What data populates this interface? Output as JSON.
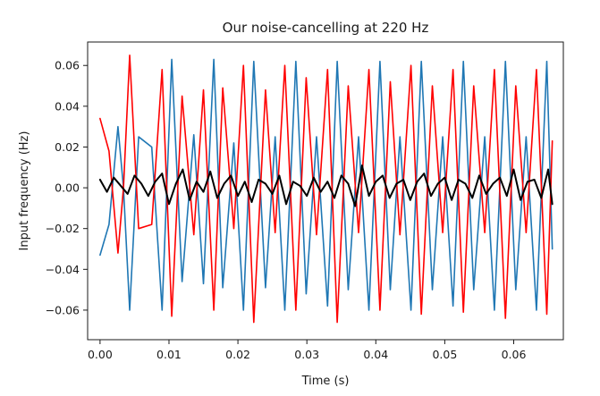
{
  "chart_data": {
    "type": "line",
    "title": "Our noise-cancelling at 220 Hz",
    "xlabel": "Time (s)",
    "ylabel": "Input frequency (Hz)",
    "xlim": [
      -0.0018,
      0.0672
    ],
    "ylim": [
      -0.0745,
      0.0715
    ],
    "x_ticks": [
      0.0,
      0.01,
      0.02,
      0.03,
      0.04,
      0.05,
      0.06
    ],
    "x_tick_labels": [
      "0.00",
      "0.01",
      "0.02",
      "0.03",
      "0.04",
      "0.05",
      "0.06"
    ],
    "y_ticks": [
      0.06,
      0.04,
      0.02,
      0.0,
      -0.02,
      -0.04,
      -0.06
    ],
    "y_tick_labels": [
      "0.06",
      "0.04",
      "0.02",
      "0.00",
      "−0.02",
      "−0.04",
      "−0.06"
    ],
    "grid": false,
    "legend": "none",
    "series": [
      {
        "color": "#1f77b4",
        "x": [
          0.0,
          0.0013,
          0.0026,
          0.0034,
          0.0043,
          0.0056,
          0.0075,
          0.009,
          0.0104,
          0.0119,
          0.0136,
          0.015,
          0.0165,
          0.0178,
          0.0194,
          0.0208,
          0.0223,
          0.024,
          0.0254,
          0.0268,
          0.0284,
          0.0299,
          0.0314,
          0.033,
          0.0344,
          0.036,
          0.0375,
          0.039,
          0.0406,
          0.0421,
          0.0435,
          0.0451,
          0.0466,
          0.0482,
          0.0497,
          0.0512,
          0.0527,
          0.0542,
          0.0558,
          0.0572,
          0.0588,
          0.0603,
          0.0618,
          0.0633,
          0.0648,
          0.0656
        ],
        "y": [
          -0.033,
          -0.018,
          0.03,
          0.0,
          -0.06,
          0.025,
          0.02,
          -0.06,
          0.063,
          -0.046,
          0.026,
          -0.047,
          0.063,
          -0.049,
          0.022,
          -0.06,
          0.062,
          -0.049,
          0.025,
          -0.06,
          0.062,
          -0.052,
          0.025,
          -0.058,
          0.062,
          -0.05,
          0.025,
          -0.06,
          0.062,
          -0.05,
          0.025,
          -0.06,
          0.062,
          -0.05,
          0.025,
          -0.058,
          0.062,
          -0.05,
          0.025,
          -0.06,
          0.062,
          -0.05,
          0.025,
          -0.06,
          0.062,
          -0.03
        ]
      },
      {
        "color": "#ff0000",
        "x": [
          0.0,
          0.0013,
          0.0026,
          0.0034,
          0.0043,
          0.0056,
          0.0075,
          0.009,
          0.0104,
          0.0119,
          0.0136,
          0.015,
          0.0165,
          0.0178,
          0.0194,
          0.0208,
          0.0223,
          0.024,
          0.0254,
          0.0268,
          0.0284,
          0.0299,
          0.0314,
          0.033,
          0.0344,
          0.036,
          0.0375,
          0.039,
          0.0406,
          0.0421,
          0.0435,
          0.0451,
          0.0466,
          0.0482,
          0.0497,
          0.0512,
          0.0527,
          0.0542,
          0.0558,
          0.0572,
          0.0588,
          0.0603,
          0.0618,
          0.0633,
          0.0648,
          0.0656
        ],
        "y": [
          0.034,
          0.018,
          -0.032,
          0.0,
          0.065,
          -0.02,
          -0.018,
          0.058,
          -0.063,
          0.045,
          -0.023,
          0.048,
          -0.06,
          0.049,
          -0.02,
          0.06,
          -0.066,
          0.048,
          -0.022,
          0.06,
          -0.06,
          0.054,
          -0.023,
          0.058,
          -0.066,
          0.05,
          -0.022,
          0.058,
          -0.06,
          0.052,
          -0.023,
          0.06,
          -0.062,
          0.05,
          -0.022,
          0.058,
          -0.061,
          0.05,
          -0.022,
          0.058,
          -0.064,
          0.05,
          -0.022,
          0.058,
          -0.062,
          0.023
        ]
      },
      {
        "color": "#000000",
        "x": [
          0.0,
          0.001,
          0.002,
          0.003,
          0.004,
          0.005,
          0.006,
          0.007,
          0.008,
          0.009,
          0.01,
          0.011,
          0.012,
          0.013,
          0.014,
          0.015,
          0.016,
          0.017,
          0.018,
          0.019,
          0.02,
          0.021,
          0.022,
          0.023,
          0.024,
          0.025,
          0.026,
          0.027,
          0.028,
          0.029,
          0.03,
          0.031,
          0.032,
          0.033,
          0.034,
          0.035,
          0.036,
          0.037,
          0.038,
          0.039,
          0.04,
          0.041,
          0.042,
          0.043,
          0.044,
          0.045,
          0.046,
          0.047,
          0.048,
          0.049,
          0.05,
          0.051,
          0.052,
          0.053,
          0.054,
          0.055,
          0.056,
          0.057,
          0.058,
          0.059,
          0.06,
          0.061,
          0.062,
          0.063,
          0.064,
          0.065,
          0.0656
        ],
        "y": [
          0.004,
          -0.002,
          0.005,
          0.001,
          -0.003,
          0.006,
          0.002,
          -0.004,
          0.003,
          0.007,
          -0.008,
          0.002,
          0.009,
          -0.006,
          0.003,
          -0.002,
          0.008,
          -0.005,
          0.002,
          0.006,
          -0.004,
          0.003,
          -0.007,
          0.004,
          0.002,
          -0.003,
          0.006,
          -0.008,
          0.003,
          0.001,
          -0.004,
          0.005,
          -0.002,
          0.003,
          -0.005,
          0.006,
          0.002,
          -0.009,
          0.011,
          -0.004,
          0.003,
          0.006,
          -0.005,
          0.002,
          0.004,
          -0.006,
          0.003,
          0.007,
          -0.004,
          0.002,
          0.005,
          -0.006,
          0.004,
          0.002,
          -0.005,
          0.006,
          -0.003,
          0.002,
          0.005,
          -0.004,
          0.009,
          -0.006,
          0.003,
          0.004,
          -0.005,
          0.009,
          -0.008
        ]
      }
    ]
  }
}
